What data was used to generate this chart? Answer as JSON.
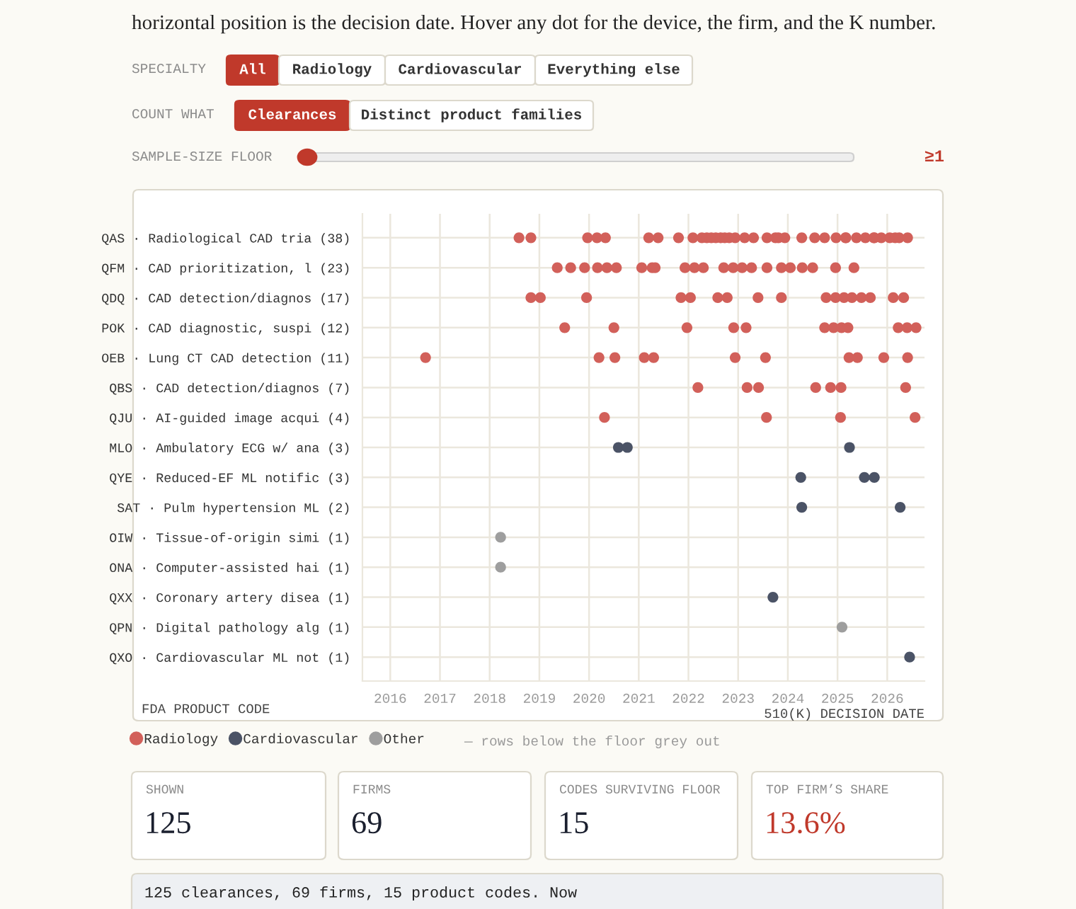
{
  "chart_data": [
    {
      "type": "scatter",
      "orientation": "horizontal",
      "categories": [
        "QAS · Radiological CAD tria (38)",
        "QFM · CAD prioritization, l (23)",
        "QDQ · CAD detection/diagnos (17)",
        "POK · CAD diagnostic, suspi (12)",
        "OEB · Lung CT CAD detection (11)",
        "QBS · CAD detection/diagnos (7)",
        "QJU · AI-guided image acqui (4)",
        "MLO · Ambulatory ECG w/ ana (3)",
        "QYE · Reduced-EF ML notific (3)",
        "SAT · Pulm hypertension ML (2)",
        "OIW · Tissue-of-origin simi (1)",
        "ONA · Computer-assisted hai (1)",
        "QXX · Coronary artery disea (1)",
        "QPN · Digital pathology alg (1)",
        "QXO · Cardiovascular ML not (1)"
      ],
      "xlabel": "510(K) DECISION DATE",
      "ylabel": "FDA PRODUCT CODE",
      "xlim": [
        2015.44,
        2026.75
      ],
      "xticks": [
        2016,
        2017,
        2018,
        2019,
        2020,
        2021,
        2022,
        2023,
        2024,
        2025,
        2026
      ],
      "grid": true,
      "marker": "circle",
      "legend": "bottom",
      "series": [
        {
          "name": "Radiology",
          "color": "#d2605a",
          "values": [
            2018.59,
            2018.83,
            2019.97,
            2020.16,
            2020.33,
            2021.2,
            2021.39,
            2021.8,
            2022.09,
            2022.27,
            2022.37,
            2022.46,
            2022.55,
            2022.65,
            2022.73,
            2022.82,
            2022.94,
            2023.13,
            2023.31,
            2023.58,
            2023.75,
            2023.81,
            2023.94,
            2024.28,
            2024.54,
            2024.74,
            2024.97,
            2025.16,
            2025.17,
            2025.38,
            2025.56,
            2025.73,
            2025.74,
            2025.88,
            2026.05,
            2026.16,
            2026.24,
            2026.41,
            2019.36,
            2019.63,
            2019.91,
            2020.17,
            2020.36,
            2020.55,
            2021.06,
            2021.27,
            2021.33,
            2021.93,
            2022.12,
            2022.3,
            2022.71,
            2022.9,
            2023.08,
            2023.27,
            2023.58,
            2023.87,
            2024.05,
            2024.29,
            2024.5,
            2024.96,
            2025.33,
            2018.83,
            2019.02,
            2019.95,
            2021.85,
            2022.04,
            2022.59,
            2022.78,
            2023.4,
            2023.87,
            2024.77,
            2024.96,
            2025.13,
            2025.29,
            2025.48,
            2025.66,
            2026.12,
            2026.33,
            2019.51,
            2020.5,
            2021.97,
            2022.91,
            2023.16,
            2024.74,
            2024.92,
            2025.08,
            2025.21,
            2026.22,
            2026.4,
            2026.58,
            2016.71,
            2020.2,
            2020.52,
            2021.11,
            2021.3,
            2022.94,
            2023.55,
            2025.23,
            2025.4,
            2025.93,
            2026.41,
            2022.19,
            2023.18,
            2023.41,
            2024.56,
            2024.86,
            2025.07,
            2026.37,
            2020.31,
            2023.57,
            2025.06,
            2026.56
          ],
          "x": [
            "QAS · Radiological CAD tria (38)",
            "QAS · Radiological CAD tria (38)",
            "QAS · Radiological CAD tria (38)",
            "QAS · Radiological CAD tria (38)",
            "QAS · Radiological CAD tria (38)",
            "QAS · Radiological CAD tria (38)",
            "QAS · Radiological CAD tria (38)",
            "QAS · Radiological CAD tria (38)",
            "QAS · Radiological CAD tria (38)",
            "QAS · Radiological CAD tria (38)",
            "QAS · Radiological CAD tria (38)",
            "QAS · Radiological CAD tria (38)",
            "QAS · Radiological CAD tria (38)",
            "QAS · Radiological CAD tria (38)",
            "QAS · Radiological CAD tria (38)",
            "QAS · Radiological CAD tria (38)",
            "QAS · Radiological CAD tria (38)",
            "QAS · Radiological CAD tria (38)",
            "QAS · Radiological CAD tria (38)",
            "QAS · Radiological CAD tria (38)",
            "QAS · Radiological CAD tria (38)",
            "QAS · Radiological CAD tria (38)",
            "QAS · Radiological CAD tria (38)",
            "QAS · Radiological CAD tria (38)",
            "QAS · Radiological CAD tria (38)",
            "QAS · Radiological CAD tria (38)",
            "QAS · Radiological CAD tria (38)",
            "QAS · Radiological CAD tria (38)",
            "QAS · Radiological CAD tria (38)",
            "QAS · Radiological CAD tria (38)",
            "QAS · Radiological CAD tria (38)",
            "QAS · Radiological CAD tria (38)",
            "QAS · Radiological CAD tria (38)",
            "QAS · Radiological CAD tria (38)",
            "QAS · Radiological CAD tria (38)",
            "QAS · Radiological CAD tria (38)",
            "QAS · Radiological CAD tria (38)",
            "QAS · Radiological CAD tria (38)",
            "QFM · CAD prioritization, l (23)",
            "QFM · CAD prioritization, l (23)",
            "QFM · CAD prioritization, l (23)",
            "QFM · CAD prioritization, l (23)",
            "QFM · CAD prioritization, l (23)",
            "QFM · CAD prioritization, l (23)",
            "QFM · CAD prioritization, l (23)",
            "QFM · CAD prioritization, l (23)",
            "QFM · CAD prioritization, l (23)",
            "QFM · CAD prioritization, l (23)",
            "QFM · CAD prioritization, l (23)",
            "QFM · CAD prioritization, l (23)",
            "QFM · CAD prioritization, l (23)",
            "QFM · CAD prioritization, l (23)",
            "QFM · CAD prioritization, l (23)",
            "QFM · CAD prioritization, l (23)",
            "QFM · CAD prioritization, l (23)",
            "QFM · CAD prioritization, l (23)",
            "QFM · CAD prioritization, l (23)",
            "QFM · CAD prioritization, l (23)",
            "QFM · CAD prioritization, l (23)",
            "QFM · CAD prioritization, l (23)",
            "QFM · CAD prioritization, l (23)",
            "QDQ · CAD detection/diagnos (17)",
            "QDQ · CAD detection/diagnos (17)",
            "QDQ · CAD detection/diagnos (17)",
            "QDQ · CAD detection/diagnos (17)",
            "QDQ · CAD detection/diagnos (17)",
            "QDQ · CAD detection/diagnos (17)",
            "QDQ · CAD detection/diagnos (17)",
            "QDQ · CAD detection/diagnos (17)",
            "QDQ · CAD detection/diagnos (17)",
            "QDQ · CAD detection/diagnos (17)",
            "QDQ · CAD detection/diagnos (17)",
            "QDQ · CAD detection/diagnos (17)",
            "QDQ · CAD detection/diagnos (17)",
            "QDQ · CAD detection/diagnos (17)",
            "QDQ · CAD detection/diagnos (17)",
            "QDQ · CAD detection/diagnos (17)",
            "QDQ · CAD detection/diagnos (17)",
            "POK · CAD diagnostic, suspi (12)",
            "POK · CAD diagnostic, suspi (12)",
            "POK · CAD diagnostic, suspi (12)",
            "POK · CAD diagnostic, suspi (12)",
            "POK · CAD diagnostic, suspi (12)",
            "POK · CAD diagnostic, suspi (12)",
            "POK · CAD diagnostic, suspi (12)",
            "POK · CAD diagnostic, suspi (12)",
            "POK · CAD diagnostic, suspi (12)",
            "POK · CAD diagnostic, suspi (12)",
            "POK · CAD diagnostic, suspi (12)",
            "POK · CAD diagnostic, suspi (12)",
            "OEB · Lung CT CAD detection (11)",
            "OEB · Lung CT CAD detection (11)",
            "OEB · Lung CT CAD detection (11)",
            "OEB · Lung CT CAD detection (11)",
            "OEB · Lung CT CAD detection (11)",
            "OEB · Lung CT CAD detection (11)",
            "OEB · Lung CT CAD detection (11)",
            "OEB · Lung CT CAD detection (11)",
            "OEB · Lung CT CAD detection (11)",
            "OEB · Lung CT CAD detection (11)",
            "OEB · Lung CT CAD detection (11)",
            "QBS · CAD detection/diagnos (7)",
            "QBS · CAD detection/diagnos (7)",
            "QBS · CAD detection/diagnos (7)",
            "QBS · CAD detection/diagnos (7)",
            "QBS · CAD detection/diagnos (7)",
            "QBS · CAD detection/diagnos (7)",
            "QBS · CAD detection/diagnos (7)",
            "QJU · AI-guided image acqui (4)",
            "QJU · AI-guided image acqui (4)",
            "QJU · AI-guided image acqui (4)",
            "QJU · AI-guided image acqui (4)"
          ]
        },
        {
          "name": "Cardiovascular",
          "color": "#4b5366",
          "values": [
            2020.59,
            2020.77,
            2025.24,
            2024.26,
            2025.54,
            2025.74,
            2024.28,
            2026.26,
            2023.7,
            2026.45
          ],
          "x": [
            "MLO · Ambulatory ECG w/ ana (3)",
            "MLO · Ambulatory ECG w/ ana (3)",
            "MLO · Ambulatory ECG w/ ana (3)",
            "QYE · Reduced-EF ML notific (3)",
            "QYE · Reduced-EF ML notific (3)",
            "QYE · Reduced-EF ML notific (3)",
            "SAT · Pulm hypertension ML (2)",
            "SAT · Pulm hypertension ML (2)",
            "QXX · Coronary artery disea (1)",
            "QXO · Cardiovascular ML not (1)"
          ]
        },
        {
          "name": "Other",
          "color": "#9e9e9e",
          "values": [
            2018.22,
            2018.22,
            2025.09
          ],
          "x": [
            "OIW · Tissue-of-origin simi (1)",
            "ONA · Computer-assisted hai (1)",
            "QPN · Digital pathology alg (1)"
          ]
        }
      ],
      "annotations": [
        "horizontal position is the decision date. Hover any dot for the device, the firm, and the K number.",
        "SPECIALTY",
        "All",
        "Radiology",
        "Cardiovascular",
        "Everything else",
        "COUNT WHAT",
        "Clearances",
        "Distinct product families",
        "SAMPLE-SIZE FLOOR",
        "≥1",
        "— rows below the floor grey out"
      ]
    },
    {
      "type": "other",
      "annotations": [
        "SHOWN",
        "125",
        "FIRMS",
        "69",
        "CODES SURVIVING FLOOR",
        "15",
        "TOP FIRM’S SHARE",
        "13.6%",
        "125 clearances, 69 firms, 15 product codes. Now"
      ]
    }
  ]
}
